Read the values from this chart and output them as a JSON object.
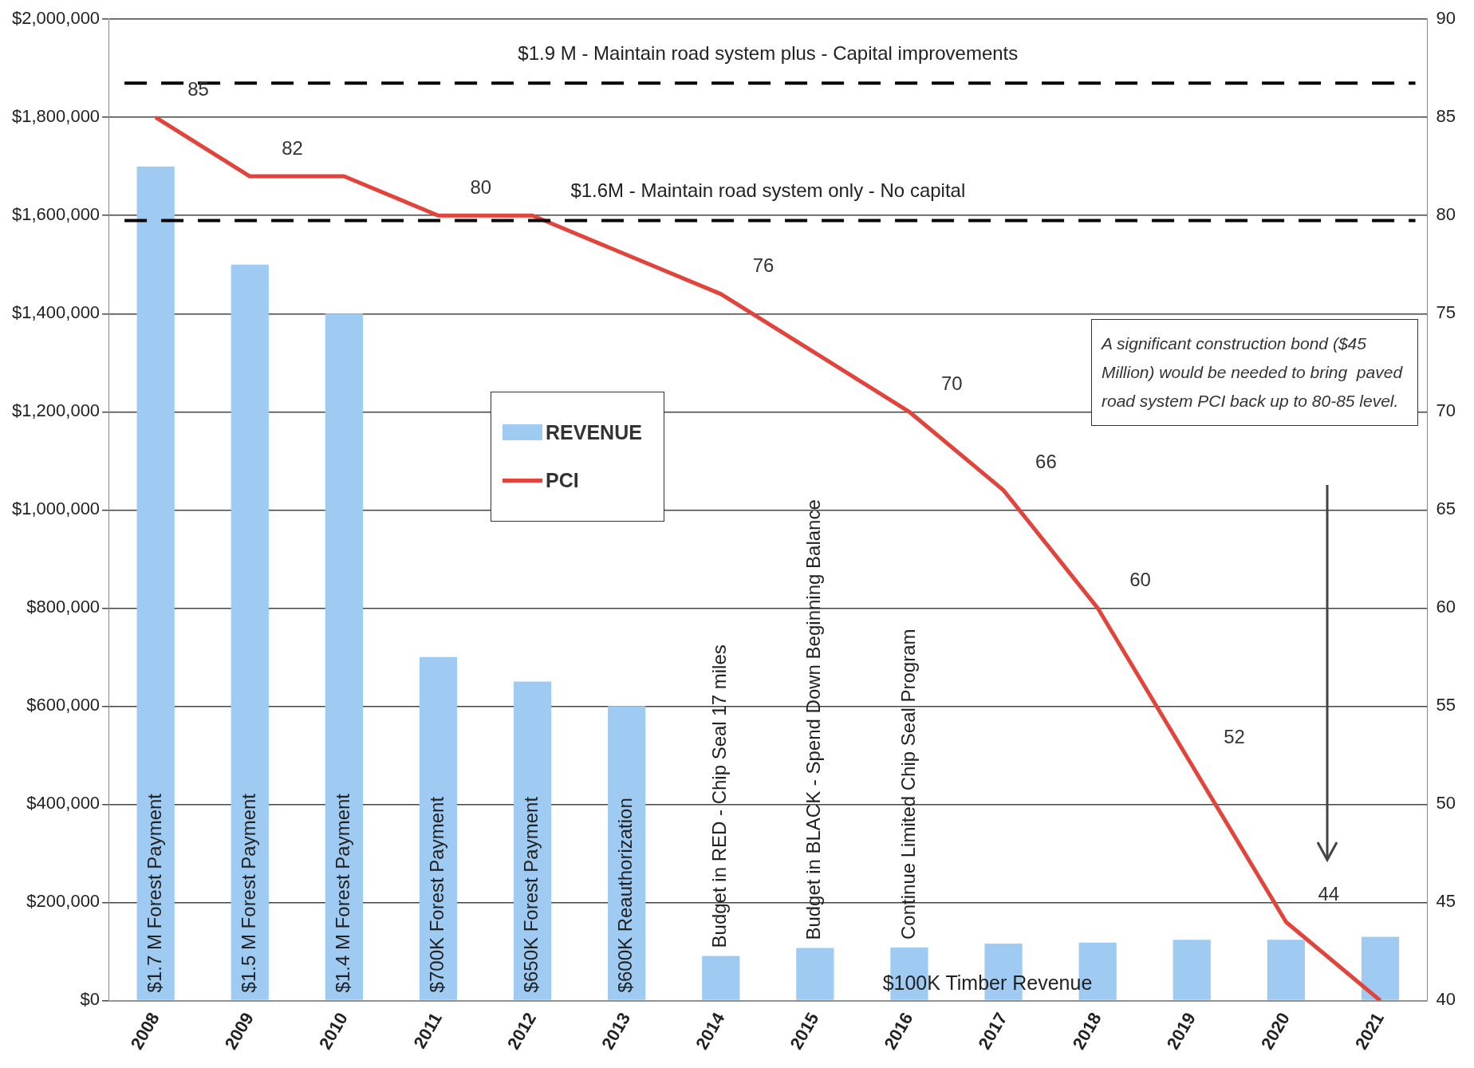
{
  "chart_data": {
    "type": "bar",
    "categories": [
      "2008",
      "2009",
      "2010",
      "2011",
      "2012",
      "2013",
      "2014",
      "2015",
      "2016",
      "2017",
      "2018",
      "2019",
      "2020",
      "2021"
    ],
    "series": [
      {
        "name": "REVENUE",
        "type": "bar",
        "color": "#9fcbf2",
        "values": [
          1700000,
          1500000,
          1400000,
          700000,
          650000,
          600000,
          91000,
          107000,
          108000,
          116000,
          118000,
          124000,
          124000,
          130000
        ]
      },
      {
        "name": "PCI",
        "type": "line",
        "axis": "y2",
        "color": "#e2433b",
        "values": [
          85,
          82,
          82,
          80,
          80,
          78,
          76,
          73,
          70,
          66,
          60,
          52,
          44,
          40
        ],
        "value_labels": [
          "85",
          "82",
          null,
          "80",
          null,
          null,
          "76",
          null,
          "70",
          "66",
          "60",
          "52",
          "44",
          null
        ]
      }
    ],
    "ylim": [
      0,
      2000000
    ],
    "yticks": [
      {
        "value": 0,
        "label": "$0"
      },
      {
        "value": 200000,
        "label": "$200,000"
      },
      {
        "value": 400000,
        "label": "$400,000"
      },
      {
        "value": 600000,
        "label": "$600,000"
      },
      {
        "value": 800000,
        "label": "$800,000"
      },
      {
        "value": 1000000,
        "label": "$1,000,000"
      },
      {
        "value": 1200000,
        "label": "$1,200,000"
      },
      {
        "value": 1400000,
        "label": "$1,400,000"
      },
      {
        "value": 1600000,
        "label": "$1,600,000"
      },
      {
        "value": 1800000,
        "label": "$1,800,000"
      },
      {
        "value": 2000000,
        "label": "$2,000,000"
      }
    ],
    "y2lim": [
      40,
      90
    ],
    "y2ticks": [
      40,
      45,
      50,
      55,
      60,
      65,
      70,
      75,
      80,
      85,
      90
    ],
    "ref_lines": [
      {
        "axis": "y",
        "value": 1870000,
        "label": "$1.9 M - Maintain road system plus - Capital improvements",
        "color": "#000000",
        "line_style": "dashed"
      },
      {
        "axis": "y",
        "value": 1590000,
        "label": "$1.6M - Maintain road system only - No capital",
        "color": "#000000",
        "line_style": "dashed"
      }
    ],
    "annotations": [
      {
        "text": "$1.7 M Forest Payment",
        "x": "2008",
        "y": 0
      },
      {
        "text": "$1.5 M Forest Payment",
        "x": "2009",
        "y": 0
      },
      {
        "text": "$1.4 M Forest Payment",
        "x": "2010",
        "y": 0
      },
      {
        "text": "$700K Forest Payment",
        "x": "2011",
        "y": 0
      },
      {
        "text": "$650K Forest Payment",
        "x": "2012",
        "y": 0
      },
      {
        "text": "$600K Reauthorization",
        "x": "2013",
        "y": 0
      },
      {
        "text": "Budget in RED - Chip Seal 17 miles",
        "x": "2014",
        "y": 91000
      },
      {
        "text": "Budget in BLACK - Spend Down Beginning Balance",
        "x": "2015",
        "y": 107000
      },
      {
        "text": "Continue Limited Chip Seal Program",
        "x": "2016",
        "y": 108000
      },
      "$100K Timber Revenue",
      "A significant construction bond ($45 Million) would be needed to bring  paved road system PCI back up to 80-85 level."
    ],
    "grid": "y",
    "legend": "center"
  }
}
